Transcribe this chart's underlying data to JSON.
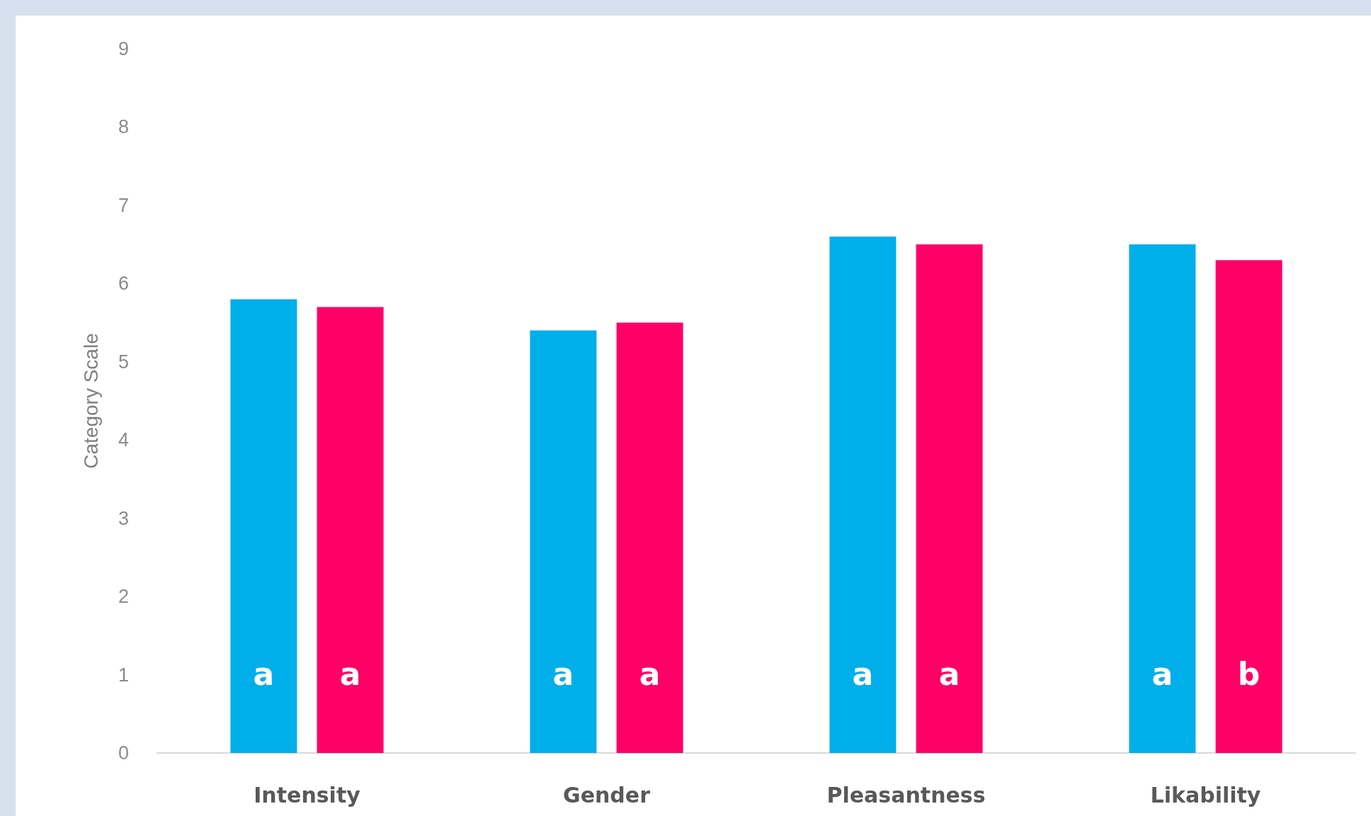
{
  "chart_data": {
    "type": "bar",
    "ylabel": "Category Scale",
    "categories": [
      "Intensity",
      "Gender",
      "Pleasantness",
      "Likability"
    ],
    "series": [
      {
        "color": "#00aeea",
        "values": [
          5.8,
          5.4,
          6.6,
          6.5
        ],
        "value_labels": [
          "a",
          "a",
          "a",
          "a"
        ]
      },
      {
        "color": "#ff0066",
        "values": [
          5.7,
          5.5,
          6.5,
          6.3
        ],
        "value_labels": [
          "a",
          "a",
          "a",
          "b"
        ]
      }
    ],
    "ylim": [
      0,
      9
    ],
    "yticks": [
      0,
      1,
      2,
      3,
      4,
      5,
      6,
      7,
      8,
      9
    ]
  }
}
